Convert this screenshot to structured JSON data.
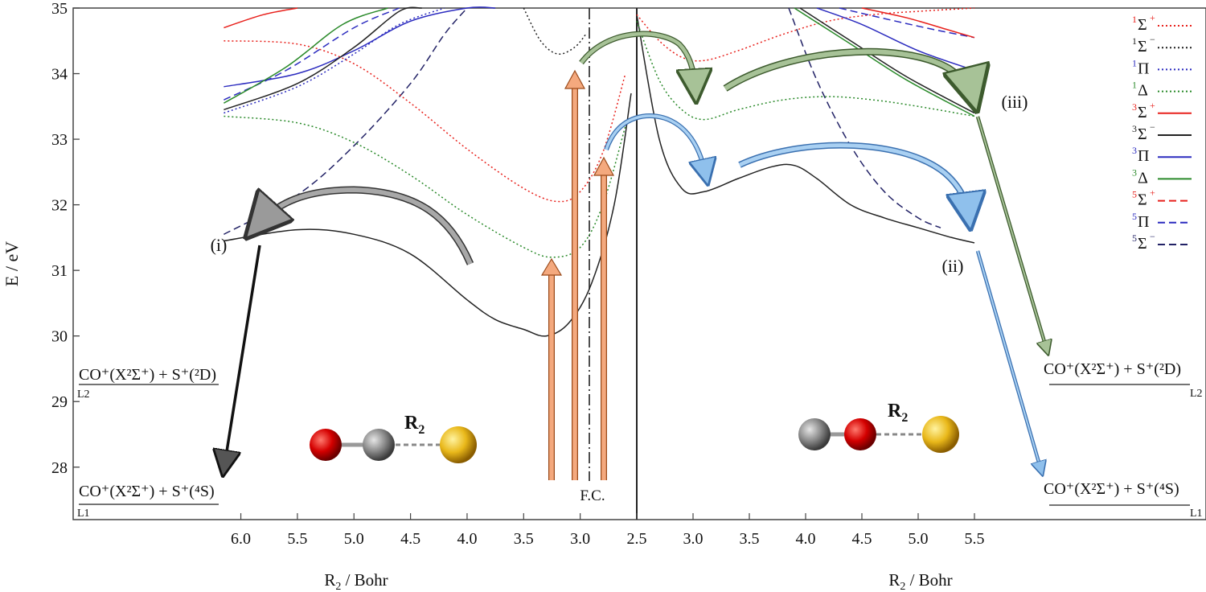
{
  "chart_data": {
    "type": "line",
    "ylabel": "E / eV",
    "xlabel_left": "R2 / Bohr",
    "xlabel_right": "R2 / Bohr",
    "ylim": [
      27.2,
      35
    ],
    "y_ticks": [
      28,
      29,
      30,
      31,
      32,
      33,
      34,
      35
    ],
    "x_ticks_left": [
      "6.0",
      "5.5",
      "5.0",
      "4.5",
      "4.0",
      "3.5",
      "3.0",
      "2.5"
    ],
    "x_ticks_right": [
      "2.5",
      "3.0",
      "3.5",
      "4.0",
      "4.5",
      "5.0",
      "5.5"
    ],
    "fc_label": "F.C.",
    "legend": [
      {
        "mult": "1",
        "sym": "Σ",
        "sup": "+",
        "color": "#e8211c",
        "style": "dotted"
      },
      {
        "mult": "1",
        "sym": "Σ",
        "sup": "−",
        "color": "#222222",
        "style": "dotted"
      },
      {
        "mult": "1",
        "sym": "Π",
        "sup": "",
        "color": "#2b2bbf",
        "style": "dotted"
      },
      {
        "mult": "1",
        "sym": "Δ",
        "sup": "",
        "color": "#2a8a2a",
        "style": "dotted"
      },
      {
        "mult": "3",
        "sym": "Σ",
        "sup": "+",
        "color": "#e8211c",
        "style": "solid"
      },
      {
        "mult": "3",
        "sym": "Σ",
        "sup": "−",
        "color": "#222222",
        "style": "solid"
      },
      {
        "mult": "3",
        "sym": "Π",
        "sup": "",
        "color": "#2b2bbf",
        "style": "solid"
      },
      {
        "mult": "3",
        "sym": "Δ",
        "sup": "",
        "color": "#2a8a2a",
        "style": "solid"
      },
      {
        "mult": "5",
        "sym": "Σ",
        "sup": "+",
        "color": "#e8211c",
        "style": "dashed"
      },
      {
        "mult": "5",
        "sym": "Π",
        "sup": "",
        "color": "#2b2bbf",
        "style": "dashed"
      },
      {
        "mult": "5",
        "sym": "Σ",
        "sup": "−",
        "color": "#222266",
        "style": "dashed"
      }
    ],
    "asymptotes": [
      {
        "text": "CO⁺(X²Σ⁺) + S⁺(²D)",
        "sub": "L2",
        "energy": 29.2
      },
      {
        "text": "CO⁺(X²Σ⁺) + S⁺(⁴S)",
        "sub": "L1",
        "energy": 27.5
      }
    ],
    "pathway_labels": [
      "(i)",
      "(ii)",
      "(iii)"
    ],
    "molecule_label": "R2",
    "molecule_sub": "2",
    "series": [
      {
        "side": "left",
        "legend_index": 5,
        "x": [
          6.15,
          5.5,
          5.0,
          4.5,
          4.0,
          3.75,
          3.5,
          3.3,
          3.1,
          2.9,
          2.7,
          2.55
        ],
        "y": [
          31.45,
          31.62,
          31.55,
          31.25,
          30.55,
          30.25,
          30.1,
          30.0,
          30.2,
          30.8,
          32.0,
          33.7
        ]
      },
      {
        "side": "left",
        "legend_index": 10,
        "x": [
          6.15,
          5.5,
          5.0,
          4.5,
          4.2,
          4.0
        ],
        "y": [
          31.55,
          32.15,
          32.9,
          33.85,
          34.6,
          35.0
        ]
      },
      {
        "side": "left",
        "legend_index": 3,
        "x": [
          6.15,
          5.5,
          5.0,
          4.5,
          4.0,
          3.5,
          3.25,
          3.0,
          2.8,
          2.6
        ],
        "y": [
          33.35,
          33.25,
          32.95,
          32.45,
          31.85,
          31.35,
          31.2,
          31.35,
          32.0,
          33.2
        ]
      },
      {
        "side": "left",
        "legend_index": 0,
        "x": [
          6.15,
          5.5,
          5.0,
          4.5,
          4.0,
          3.5,
          3.2,
          3.0,
          2.8,
          2.6
        ],
        "y": [
          34.5,
          34.45,
          34.15,
          33.55,
          32.85,
          32.25,
          32.05,
          32.2,
          32.8,
          34.0
        ]
      },
      {
        "side": "left",
        "legend_index": 1,
        "x": [
          3.5,
          3.35,
          3.2,
          3.05,
          2.95
        ],
        "y": [
          35.0,
          34.5,
          34.3,
          34.4,
          34.6
        ]
      },
      {
        "side": "left",
        "legend_index": 6,
        "x": [
          6.15,
          5.5,
          5.0,
          4.5,
          4.0,
          3.75
        ],
        "y": [
          33.8,
          34.0,
          34.35,
          34.8,
          35.0,
          35.0
        ]
      },
      {
        "side": "left",
        "legend_index": 5,
        "x": [
          6.15,
          5.5,
          5.0,
          4.6,
          4.4
        ],
        "y": [
          33.45,
          33.85,
          34.4,
          34.95,
          35.0
        ]
      },
      {
        "side": "left",
        "legend_index": 9,
        "x": [
          6.15,
          5.6,
          5.0,
          4.6
        ],
        "y": [
          33.6,
          34.05,
          34.7,
          35.0
        ]
      },
      {
        "side": "left",
        "legend_index": 7,
        "x": [
          6.15,
          5.6,
          5.1,
          4.7
        ],
        "y": [
          33.55,
          34.1,
          34.75,
          35.0
        ]
      },
      {
        "side": "left",
        "legend_index": 4,
        "x": [
          6.15,
          5.8,
          5.5
        ],
        "y": [
          34.7,
          34.9,
          35.0
        ]
      },
      {
        "side": "left",
        "legend_index": 2,
        "x": [
          6.15,
          5.5,
          5.0,
          4.6,
          4.2
        ],
        "y": [
          33.4,
          33.8,
          34.3,
          34.75,
          35.0
        ]
      },
      {
        "side": "right",
        "legend_index": 5,
        "x": [
          2.5,
          2.7,
          2.9,
          3.1,
          3.4,
          3.7,
          3.9,
          4.1,
          4.4,
          4.7,
          5.0,
          5.3,
          5.5
        ],
        "y": [
          34.9,
          33.0,
          32.25,
          32.2,
          32.4,
          32.58,
          32.6,
          32.4,
          32.0,
          31.8,
          31.65,
          31.5,
          31.42
        ]
      },
      {
        "side": "right",
        "legend_index": 10,
        "x": [
          3.85,
          4.1,
          4.4,
          4.7,
          5.0,
          5.2
        ],
        "y": [
          35.0,
          33.9,
          32.9,
          32.2,
          31.8,
          31.65
        ]
      },
      {
        "side": "right",
        "legend_index": 3,
        "x": [
          2.5,
          2.7,
          2.9,
          3.1,
          3.4,
          3.8,
          4.2,
          4.6,
          5.0,
          5.5
        ],
        "y": [
          34.8,
          33.9,
          33.45,
          33.3,
          33.45,
          33.6,
          33.65,
          33.6,
          33.5,
          33.35
        ]
      },
      {
        "side": "right",
        "legend_index": 0,
        "x": [
          2.5,
          2.7,
          2.9,
          3.1,
          3.4,
          3.8,
          4.2,
          4.6,
          5.0,
          5.5
        ],
        "y": [
          34.9,
          34.5,
          34.25,
          34.2,
          34.35,
          34.6,
          34.8,
          34.9,
          34.95,
          35.0
        ]
      },
      {
        "side": "right",
        "legend_index": 6,
        "x": [
          4.1,
          4.5,
          5.0,
          5.5
        ],
        "y": [
          35.0,
          34.75,
          34.35,
          34.05
        ]
      },
      {
        "side": "right",
        "legend_index": 5,
        "x": [
          3.95,
          4.4,
          4.9,
          5.5
        ],
        "y": [
          35.0,
          34.5,
          33.95,
          33.4
        ]
      },
      {
        "side": "right",
        "legend_index": 7,
        "x": [
          3.9,
          4.4,
          4.9,
          5.5
        ],
        "y": [
          35.0,
          34.45,
          33.9,
          33.35
        ]
      },
      {
        "side": "right",
        "legend_index": 9,
        "x": [
          4.3,
          4.8,
          5.2,
          5.5
        ],
        "y": [
          35.0,
          34.8,
          34.65,
          34.55
        ]
      },
      {
        "side": "right",
        "legend_index": 4,
        "x": [
          4.5,
          4.9,
          5.3,
          5.5
        ],
        "y": [
          35.0,
          34.85,
          34.65,
          34.55
        ]
      }
    ]
  }
}
